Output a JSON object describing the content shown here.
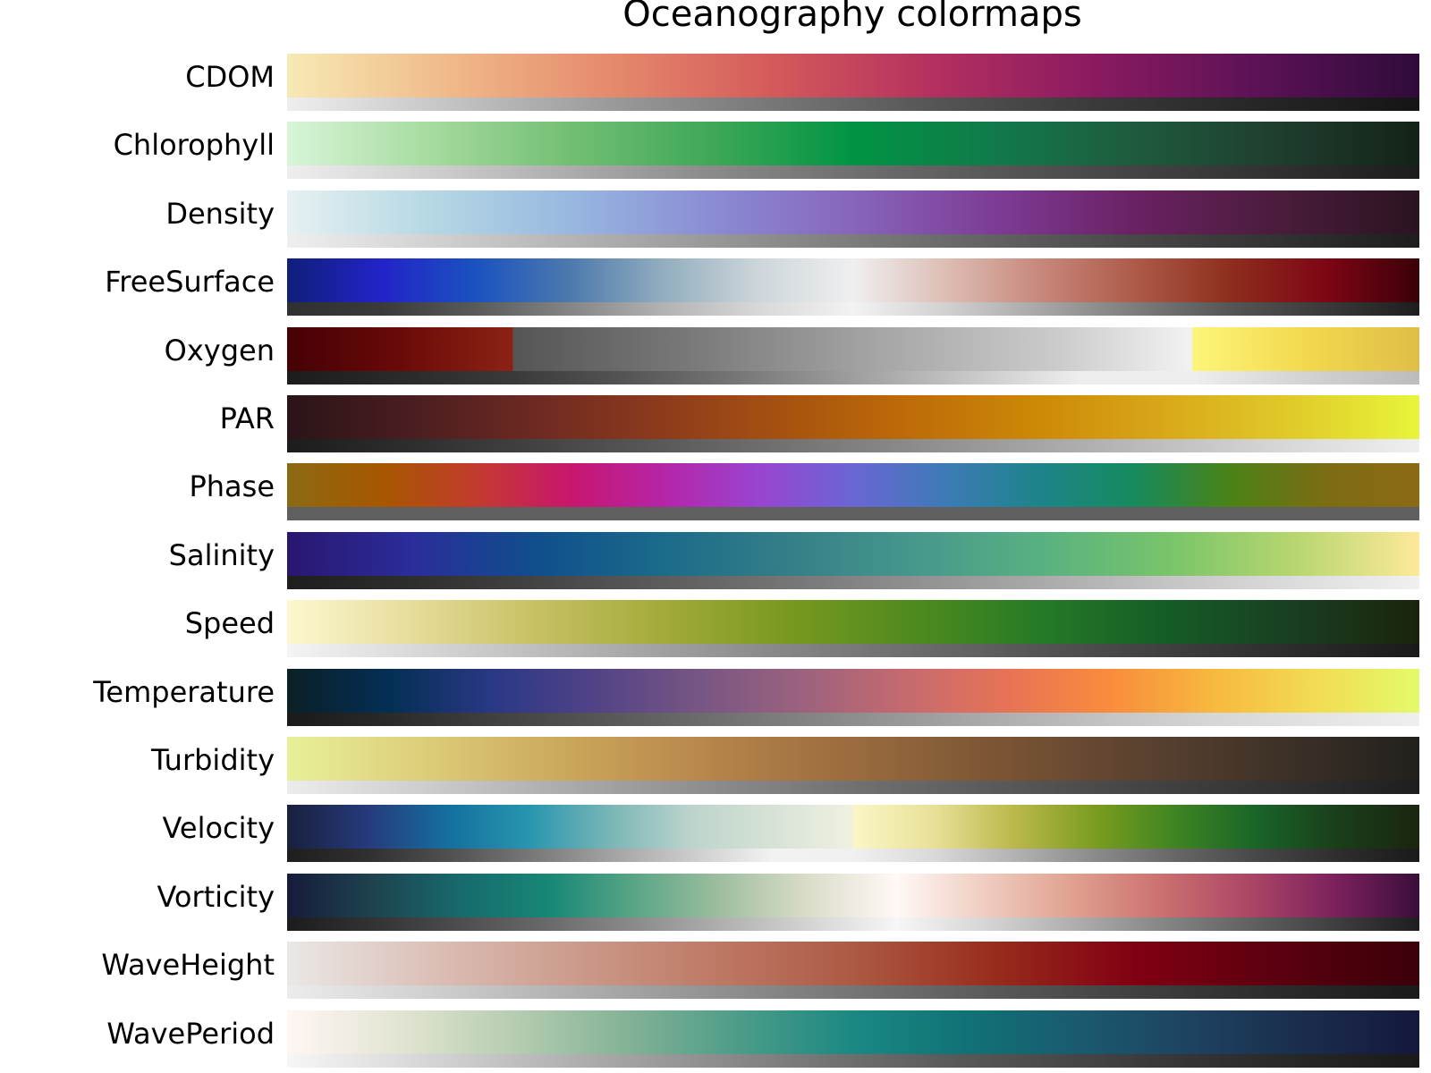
{
  "chart_data": {
    "type": "colormap",
    "title": "Oceanography colormaps",
    "colormaps": [
      {
        "name": "CDOM",
        "stops": [
          "#f6eab4",
          "#f0b98a",
          "#e58a6c",
          "#d45a5a",
          "#b3305f",
          "#8a1a60",
          "#5c1256",
          "#2f0b3a"
        ],
        "gray": [
          "#eeeeee",
          "#c4c4c4",
          "#9a9a9a",
          "#777777",
          "#555555",
          "#3a3a3a",
          "#262626",
          "#151515"
        ]
      },
      {
        "name": "Chlorophyll",
        "stops": [
          "#d8f5d8",
          "#a7dba0",
          "#72bf74",
          "#3ea858",
          "#009444",
          "#117a4a",
          "#1f5a3d",
          "#1f3e2f",
          "#142218"
        ],
        "gray": [
          "#eeeeee",
          "#cfcfcf",
          "#acacac",
          "#8a8a8a",
          "#6f6f6f",
          "#575757",
          "#434343",
          "#303030",
          "#1c1c1c"
        ]
      },
      {
        "name": "Density",
        "stops": [
          "#e6f1f2",
          "#b6d8e4",
          "#98b8e0",
          "#8a8cd4",
          "#8765bb",
          "#7d3c96",
          "#6a2162",
          "#4a1c3c",
          "#2a1420"
        ],
        "gray": [
          "#efefef",
          "#d2d2d2",
          "#b4b4b4",
          "#989898",
          "#7c7c7c",
          "#616161",
          "#474747",
          "#323232",
          "#1d1d1d"
        ]
      },
      {
        "name": "FreeSurface",
        "stops": [
          "#0f1f7a",
          "#2323c8",
          "#1a52c0",
          "#4c7aad",
          "#93aebf",
          "#cdd6db",
          "#efefef",
          "#ddbcb3",
          "#c6877a",
          "#ad5a48",
          "#8d2e1c",
          "#7e0615",
          "#3b0008"
        ],
        "gray": [
          "#303030",
          "#3a3a3a",
          "#5a5a5a",
          "#858585",
          "#b3b3b3",
          "#d8d8d8",
          "#f2f2f2",
          "#d0d0d0",
          "#a6a6a6",
          "#7c7c7c",
          "#555555",
          "#3a3a3a",
          "#1e1e1e"
        ]
      },
      {
        "name": "Oxygen",
        "stops": [
          "#450005",
          "#6a0a08",
          "#8b2314",
          "#555555",
          "#7a7a7a",
          "#a5a5a5",
          "#cbcbcb",
          "#f2f2f2",
          "#fdf57a",
          "#f3d84e",
          "#dfbe47"
        ],
        "gray": [
          "#1c1c1c",
          "#2a2a2a",
          "#3a3a3a",
          "#555555",
          "#777777",
          "#9e9e9e",
          "#c6c6c6",
          "#eeeeee",
          "#eeeeee",
          "#d2d2d2",
          "#bcbcbc"
        ]
      },
      {
        "name": "PAR",
        "stops": [
          "#2a1418",
          "#4a1e20",
          "#6e2a22",
          "#8e3b1c",
          "#a8530f",
          "#bf6d08",
          "#cd8a07",
          "#d9a91a",
          "#e0cb2a",
          "#e8f53a"
        ],
        "gray": [
          "#1c1c1c",
          "#2e2e2e",
          "#434343",
          "#5a5a5a",
          "#737373",
          "#8c8c8c",
          "#a6a6a6",
          "#c0c0c0",
          "#d9d9d9",
          "#efefef"
        ]
      },
      {
        "name": "Phase",
        "stops": [
          "#8c6a14",
          "#a65700",
          "#c33b2e",
          "#c8166e",
          "#b525a8",
          "#9944d0",
          "#6a66d4",
          "#3c7bb6",
          "#1c8488",
          "#188a5c",
          "#4a8216",
          "#7c6c14",
          "#8c6a14"
        ],
        "gray": [
          "#5f5f5f",
          "#5f5f5f",
          "#5f5f5f",
          "#5f5f5f",
          "#5f5f5f",
          "#5f5f5f",
          "#5f5f5f",
          "#5f5f5f",
          "#5f5f5f",
          "#5f5f5f",
          "#5f5f5f",
          "#5f5f5f",
          "#5f5f5f"
        ]
      },
      {
        "name": "Salinity",
        "stops": [
          "#2a1670",
          "#2a2d9a",
          "#0f4f8c",
          "#1b6b8a",
          "#347f88",
          "#46988c",
          "#58b181",
          "#78c46a",
          "#b6d66f",
          "#fde99a"
        ],
        "gray": [
          "#1e1e1e",
          "#2e2e2e",
          "#444444",
          "#5c5c5c",
          "#767676",
          "#909090",
          "#aaaaaa",
          "#c4c4c4",
          "#dcdcdc",
          "#f0f0f0"
        ]
      },
      {
        "name": "Speed",
        "stops": [
          "#fcf8d0",
          "#e6dc9a",
          "#c6c062",
          "#a2aa3a",
          "#78981e",
          "#4e8a1e",
          "#257a26",
          "#155c26",
          "#193e22",
          "#1a240d"
        ],
        "gray": [
          "#f4f4f4",
          "#d9d9d9",
          "#bdbdbd",
          "#a0a0a0",
          "#858585",
          "#6c6c6c",
          "#545454",
          "#3f3f3f",
          "#2c2c2c",
          "#1a1a1a"
        ]
      },
      {
        "name": "Temperature",
        "stops": [
          "#0a2026",
          "#042f55",
          "#2a3885",
          "#524386",
          "#775684",
          "#9c627e",
          "#c56a6f",
          "#e77356",
          "#f98c3c",
          "#f7b93e",
          "#f2dc53",
          "#e4fa6a"
        ],
        "gray": [
          "#1a1a1a",
          "#2a2a2a",
          "#404040",
          "#555555",
          "#6b6b6b",
          "#828282",
          "#999999",
          "#afafaf",
          "#c4c4c4",
          "#d6d6d6",
          "#e3e3e3",
          "#efefef"
        ]
      },
      {
        "name": "Turbidity",
        "stops": [
          "#e8f09a",
          "#dccc78",
          "#caa65a",
          "#b6854a",
          "#9a6c3e",
          "#7c5534",
          "#5c4230",
          "#3e3228",
          "#22201c"
        ],
        "gray": [
          "#ececec",
          "#cccccc",
          "#aaaaaa",
          "#8c8c8c",
          "#717171",
          "#5a5a5a",
          "#454545",
          "#323232",
          "#1e1e1e"
        ]
      },
      {
        "name": "Velocity",
        "stops": [
          "#19203e",
          "#263a7c",
          "#14709e",
          "#2896b0",
          "#7ab6b6",
          "#bcd4cc",
          "#f0f0e0",
          "#faf6c4",
          "#e8e098",
          "#bab84a",
          "#7a9c1e",
          "#3e8422",
          "#196428",
          "#1a3e1a",
          "#1a2510"
        ],
        "gray": [
          "#1e1e1e",
          "#303030",
          "#505050",
          "#777777",
          "#a2a2a2",
          "#cccccc",
          "#f2f2f2",
          "#f0f0f0",
          "#d9d9d9",
          "#b2b2b2",
          "#8a8a8a",
          "#666666",
          "#474747",
          "#2e2e2e",
          "#1a1a1a"
        ]
      },
      {
        "name": "Vorticity",
        "stops": [
          "#161c3a",
          "#1e4350",
          "#176a6c",
          "#178776",
          "#5aa686",
          "#a0bfa0",
          "#dcddca",
          "#fff8f6",
          "#efcdc0",
          "#e0a290",
          "#cc7270",
          "#ae4866",
          "#7e225e",
          "#3a0e3a"
        ],
        "gray": [
          "#1c1c1c",
          "#333333",
          "#4e4e4e",
          "#6a6a6a",
          "#8b8b8b",
          "#b0b0b0",
          "#d4d4d4",
          "#f6f6f6",
          "#d6d6d6",
          "#b0b0b0",
          "#888888",
          "#636363",
          "#404040",
          "#1e1e1e"
        ]
      },
      {
        "name": "WaveHeight",
        "stops": [
          "#eae8e6",
          "#dcc0b8",
          "#cc9c8c",
          "#be7a66",
          "#ac5a44",
          "#982c1c",
          "#800011",
          "#5a0010",
          "#3c0008"
        ],
        "gray": [
          "#ececec",
          "#d0d0d0",
          "#b0b0b0",
          "#929292",
          "#757575",
          "#595959",
          "#404040",
          "#2b2b2b",
          "#1a1a1a"
        ]
      },
      {
        "name": "WavePeriod",
        "stops": [
          "#fff6f4",
          "#e2e4d2",
          "#b6cdb2",
          "#84b296",
          "#4c9c88",
          "#1b8882",
          "#107276",
          "#1a5a6e",
          "#1e4260",
          "#1a2c4c",
          "#14183c"
        ],
        "gray": [
          "#f6f6f6",
          "#dcdcdc",
          "#bfbfbf",
          "#a2a2a2",
          "#878787",
          "#6d6d6d",
          "#575757",
          "#454545",
          "#343434",
          "#262626",
          "#1a1a1a"
        ]
      }
    ]
  }
}
